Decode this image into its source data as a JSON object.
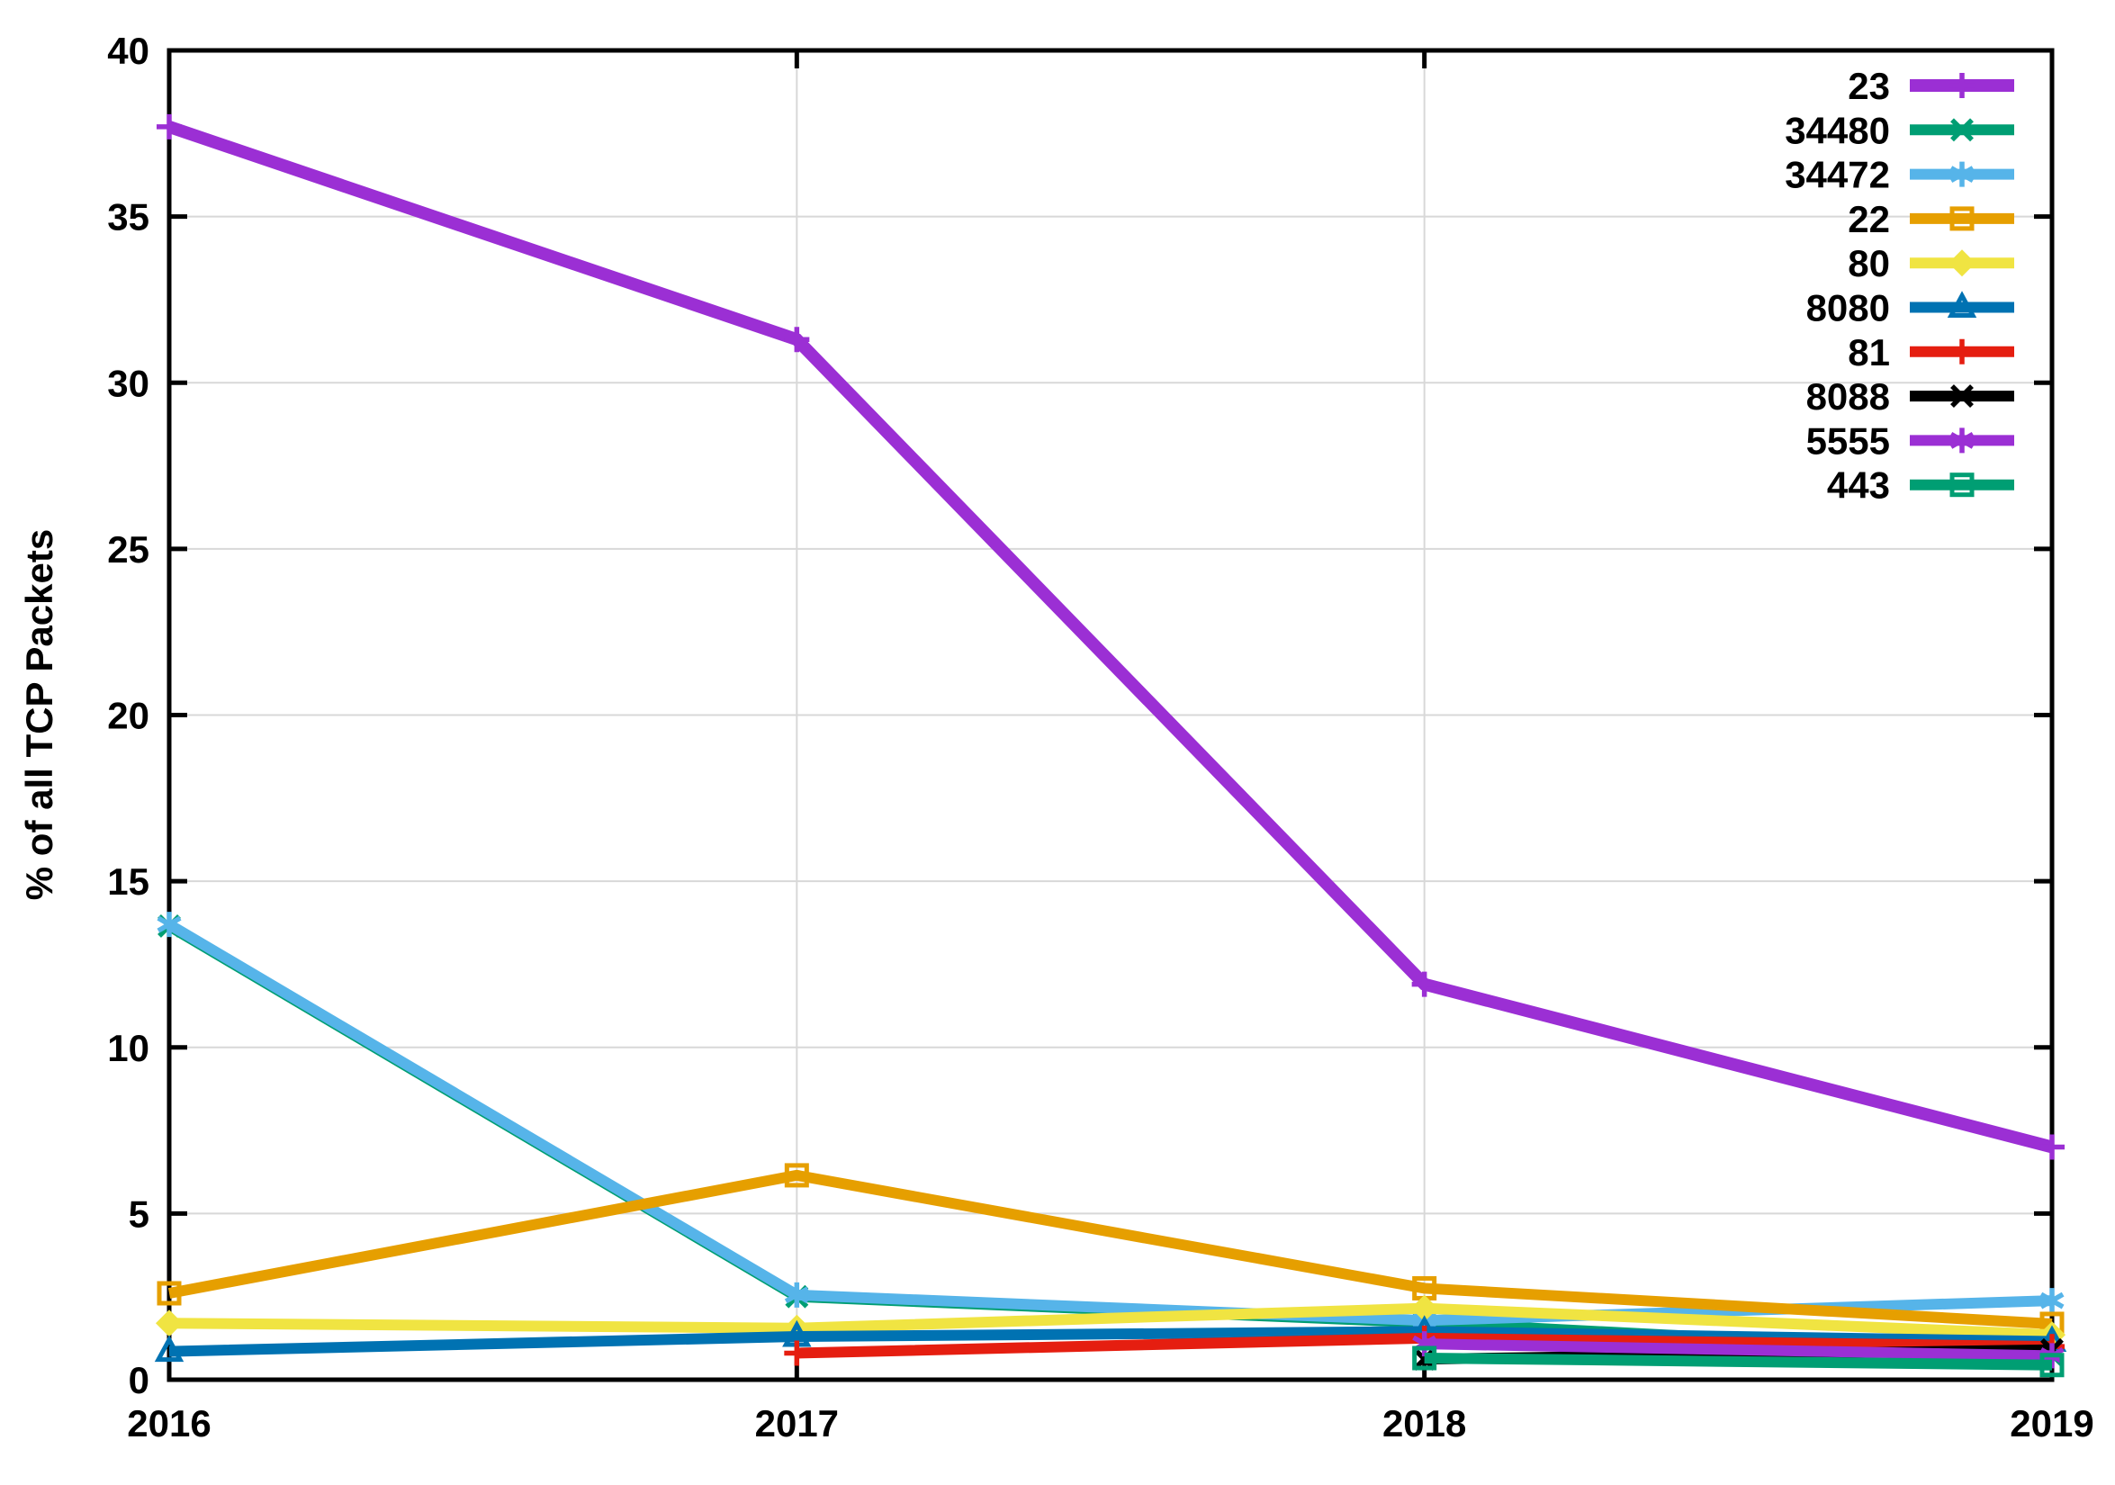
{
  "figure": {
    "background": "#ffffff",
    "border_color": "#000000",
    "grid_color": "#d8d8d8"
  },
  "chart_data": {
    "type": "line",
    "title": "",
    "xlabel": "",
    "ylabel": "% of all TCP Packets",
    "x": [
      2016,
      2017,
      2018,
      2019
    ],
    "xlim": [
      2016,
      2019
    ],
    "ylim": [
      0,
      40
    ],
    "xticks": [
      2016,
      2017,
      2018,
      2019
    ],
    "yticks": [
      0,
      5,
      10,
      15,
      20,
      25,
      30,
      35,
      40
    ],
    "grid": true,
    "legend_position": "top-right-inside",
    "series": [
      {
        "name": "23",
        "color": "#9b2fd4",
        "marker": "plus",
        "linewidth": 14,
        "values": [
          37.7,
          31.3,
          11.9,
          7.0
        ]
      },
      {
        "name": "34480",
        "color": "#009e73",
        "marker": "x",
        "linewidth": 12,
        "values": [
          13.65,
          2.5,
          1.72,
          0.75
        ]
      },
      {
        "name": "34472",
        "color": "#56b4e9",
        "marker": "asterisk",
        "linewidth": 12,
        "values": [
          13.7,
          2.55,
          1.78,
          2.38
        ]
      },
      {
        "name": "22",
        "color": "#e69f00",
        "marker": "open-square",
        "linewidth": 12,
        "values": [
          2.6,
          6.15,
          2.75,
          1.68
        ]
      },
      {
        "name": "80",
        "color": "#f0e442",
        "marker": "filled-diamond",
        "linewidth": 12,
        "values": [
          1.7,
          1.55,
          2.15,
          1.35
        ]
      },
      {
        "name": "8080",
        "color": "#0072b2",
        "marker": "open-triangle",
        "linewidth": 12,
        "values": [
          0.85,
          1.3,
          1.45,
          1.15
        ]
      },
      {
        "name": "81",
        "color": "#e51e10",
        "marker": "plus",
        "linewidth": 12,
        "values": [
          null,
          0.8,
          1.25,
          1.0
        ]
      },
      {
        "name": "8088",
        "color": "#000000",
        "marker": "x",
        "linewidth": 12,
        "values": [
          null,
          null,
          0.62,
          0.9
        ]
      },
      {
        "name": "5555",
        "color": "#9b2fd4",
        "marker": "asterisk",
        "linewidth": 12,
        "values": [
          null,
          null,
          1.08,
          0.72
        ]
      },
      {
        "name": "443",
        "color": "#009e73",
        "marker": "open-square",
        "linewidth": 12,
        "values": [
          null,
          null,
          0.65,
          0.44
        ]
      }
    ]
  }
}
